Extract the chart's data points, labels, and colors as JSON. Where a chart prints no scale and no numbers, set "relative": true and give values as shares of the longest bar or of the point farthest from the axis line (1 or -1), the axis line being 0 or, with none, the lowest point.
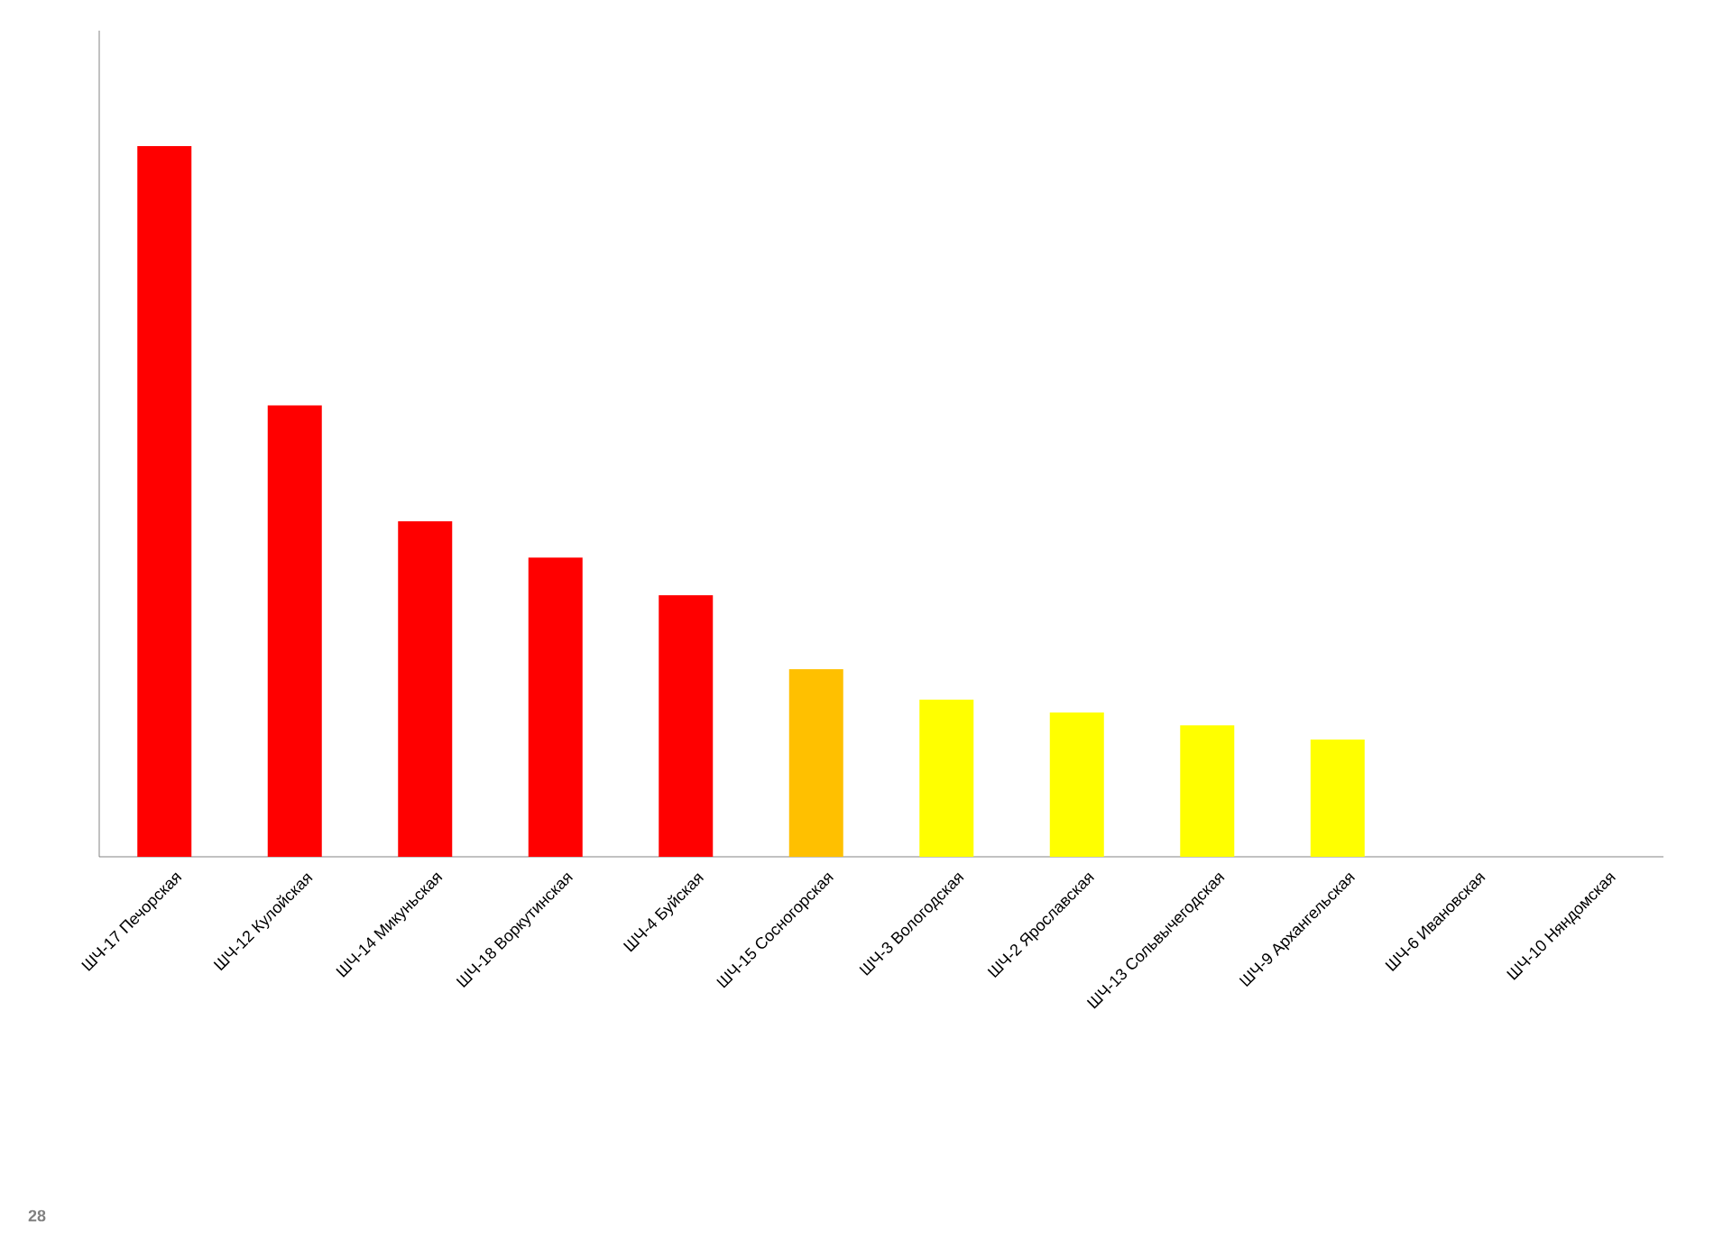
{
  "chart_data": {
    "type": "bar",
    "relative": true,
    "categories": [
      "ШЧ-17 Печорская",
      "ШЧ-12 Кулойская",
      "ШЧ-14 Микуньская",
      "ШЧ-18 Воркутинская",
      "ШЧ-4 Буйская",
      "ШЧ-15 Сосногорская",
      "ШЧ-3 Вологодская",
      "ШЧ-2 Ярославская",
      "ШЧ-13 Сольвычегодская",
      "ШЧ-9 Архангельская",
      "ШЧ-6 Ивановская",
      "ШЧ-10 Няндомская"
    ],
    "values": [
      1,
      0.635,
      0.472,
      0.421,
      0.368,
      0.264,
      0.221,
      0.203,
      0.185,
      0.165,
      0,
      0
    ],
    "colors": [
      "#ff0000",
      "#ff0000",
      "#ff0000",
      "#ff0000",
      "#ff0000",
      "#ffc000",
      "#ffff00",
      "#ffff00",
      "#ffff00",
      "#ffff00",
      "#ffff00",
      "#ffff00"
    ],
    "annotations": [
      "28"
    ]
  }
}
